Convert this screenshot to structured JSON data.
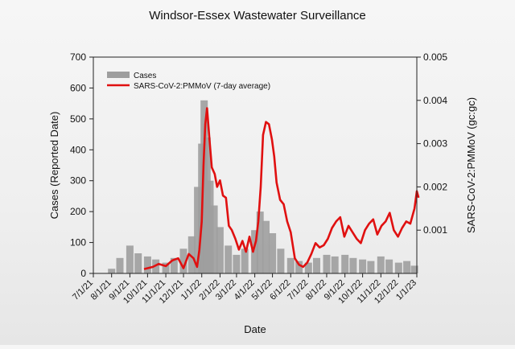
{
  "chart_data": {
    "type": "bar+line",
    "title": "Windsor-Essex Wastewater Surveillance",
    "xlabel": "Date",
    "ylabel_left": "Cases (Reported Date)",
    "ylabel_right": "SARS-CoV-2:PMMoV (gc:gc)",
    "ylim_left": [
      0,
      700
    ],
    "ylim_right": [
      0,
      0.005
    ],
    "xlim": [
      "2021-07-01",
      "2023-01-01"
    ],
    "left_ticks": [
      0,
      100,
      200,
      300,
      400,
      500,
      600,
      700
    ],
    "left_tick_labels": [
      "0",
      "100",
      "200",
      "300",
      "400",
      "500",
      "600",
      "700"
    ],
    "right_ticks": [
      0.001,
      0.002,
      0.003,
      0.004,
      0.005
    ],
    "right_tick_labels": [
      "0.001",
      "0.002",
      "0.003",
      "0.004",
      "0.005"
    ],
    "x_ticks": [
      "2021-07-01",
      "2021-08-01",
      "2021-09-01",
      "2021-10-01",
      "2021-11-01",
      "2021-12-01",
      "2022-01-01",
      "2022-02-01",
      "2022-03-01",
      "2022-04-01",
      "2022-05-01",
      "2022-06-01",
      "2022-07-01",
      "2022-08-01",
      "2022-09-01",
      "2022-10-01",
      "2022-11-01",
      "2022-12-01",
      "2023-01-01"
    ],
    "x_tick_labels": [
      "7/1/21",
      "8/1/21",
      "9/1/21",
      "10/1/21",
      "11/1/21",
      "12/1/21",
      "1/1/22",
      "2/1/22",
      "3/1/22",
      "4/1/22",
      "5/1/22",
      "6/1/22",
      "7/1/22",
      "8/1/22",
      "9/1/22",
      "10/1/22",
      "11/1/22",
      "12/1/22",
      "1/1/23"
    ],
    "grid": false,
    "legend": "top-left",
    "series": [
      {
        "name": "Cases",
        "kind": "bar",
        "color": "#9e9e9e",
        "x": [
          "2021-08-01",
          "2021-08-15",
          "2021-09-01",
          "2021-09-15",
          "2021-10-01",
          "2021-10-15",
          "2021-11-01",
          "2021-11-15",
          "2021-12-01",
          "2021-12-15",
          "2021-12-25",
          "2022-01-01",
          "2022-01-05",
          "2022-01-10",
          "2022-01-15",
          "2022-01-22",
          "2022-02-01",
          "2022-02-15",
          "2022-03-01",
          "2022-03-15",
          "2022-04-01",
          "2022-04-10",
          "2022-04-20",
          "2022-05-01",
          "2022-05-15",
          "2022-06-01",
          "2022-06-15",
          "2022-07-01",
          "2022-07-15",
          "2022-08-01",
          "2022-08-15",
          "2022-09-01",
          "2022-09-15",
          "2022-10-01",
          "2022-10-15",
          "2022-11-01",
          "2022-11-15",
          "2022-12-01",
          "2022-12-15",
          "2022-12-28"
        ],
        "values": [
          15,
          50,
          90,
          65,
          55,
          45,
          35,
          50,
          80,
          120,
          280,
          420,
          560,
          440,
          300,
          220,
          150,
          90,
          60,
          80,
          140,
          200,
          170,
          130,
          80,
          50,
          40,
          35,
          50,
          60,
          55,
          60,
          50,
          45,
          40,
          55,
          45,
          35,
          40,
          25
        ]
      },
      {
        "name": "SARS-CoV-2:PMMoV (7-day average)",
        "kind": "line",
        "axis": "right",
        "color": "#e01010",
        "x": [
          "2021-09-25",
          "2021-10-10",
          "2021-10-20",
          "2021-11-01",
          "2021-11-12",
          "2021-11-22",
          "2021-12-01",
          "2021-12-10",
          "2021-12-18",
          "2021-12-24",
          "2021-12-28",
          "2022-01-01",
          "2022-01-04",
          "2022-01-07",
          "2022-01-10",
          "2022-01-14",
          "2022-01-18",
          "2022-01-23",
          "2022-01-27",
          "2022-02-01",
          "2022-02-06",
          "2022-02-11",
          "2022-02-16",
          "2022-02-21",
          "2022-02-27",
          "2022-03-05",
          "2022-03-11",
          "2022-03-17",
          "2022-03-23",
          "2022-03-29",
          "2022-04-03",
          "2022-04-07",
          "2022-04-11",
          "2022-04-15",
          "2022-04-20",
          "2022-04-25",
          "2022-04-30",
          "2022-05-04",
          "2022-05-08",
          "2022-05-14",
          "2022-05-20",
          "2022-05-26",
          "2022-06-01",
          "2022-06-08",
          "2022-06-15",
          "2022-06-22",
          "2022-06-29",
          "2022-07-06",
          "2022-07-13",
          "2022-07-20",
          "2022-07-27",
          "2022-08-03",
          "2022-08-10",
          "2022-08-17",
          "2022-08-24",
          "2022-08-31",
          "2022-09-07",
          "2022-09-14",
          "2022-09-21",
          "2022-09-28",
          "2022-10-05",
          "2022-10-12",
          "2022-10-19",
          "2022-10-26",
          "2022-11-02",
          "2022-11-09",
          "2022-11-16",
          "2022-11-23",
          "2022-11-30",
          "2022-12-07",
          "2022-12-14",
          "2022-12-21",
          "2022-12-28",
          "2023-01-01",
          "2023-01-04"
        ],
        "values": [
          0.0001,
          0.00015,
          0.00022,
          0.00017,
          0.0003,
          0.00035,
          0.00012,
          0.00045,
          0.00035,
          0.00015,
          0.00055,
          0.0012,
          0.0025,
          0.00345,
          0.00382,
          0.0031,
          0.00245,
          0.0023,
          0.002,
          0.00215,
          0.0018,
          0.00175,
          0.0011,
          0.001,
          0.0008,
          0.00055,
          0.00075,
          0.0005,
          0.00085,
          0.0005,
          0.00075,
          0.0012,
          0.002,
          0.0032,
          0.0035,
          0.00345,
          0.0031,
          0.0027,
          0.0021,
          0.0017,
          0.0016,
          0.0012,
          0.00095,
          0.00035,
          0.0002,
          0.00015,
          0.00025,
          0.00045,
          0.0007,
          0.0006,
          0.00065,
          0.0008,
          0.00105,
          0.0012,
          0.0013,
          0.00085,
          0.0011,
          0.00095,
          0.0008,
          0.0007,
          0.001,
          0.00115,
          0.00125,
          0.0009,
          0.0011,
          0.0012,
          0.0014,
          0.001,
          0.00085,
          0.00105,
          0.0012,
          0.00115,
          0.0015,
          0.0019,
          0.00175
        ]
      }
    ]
  }
}
